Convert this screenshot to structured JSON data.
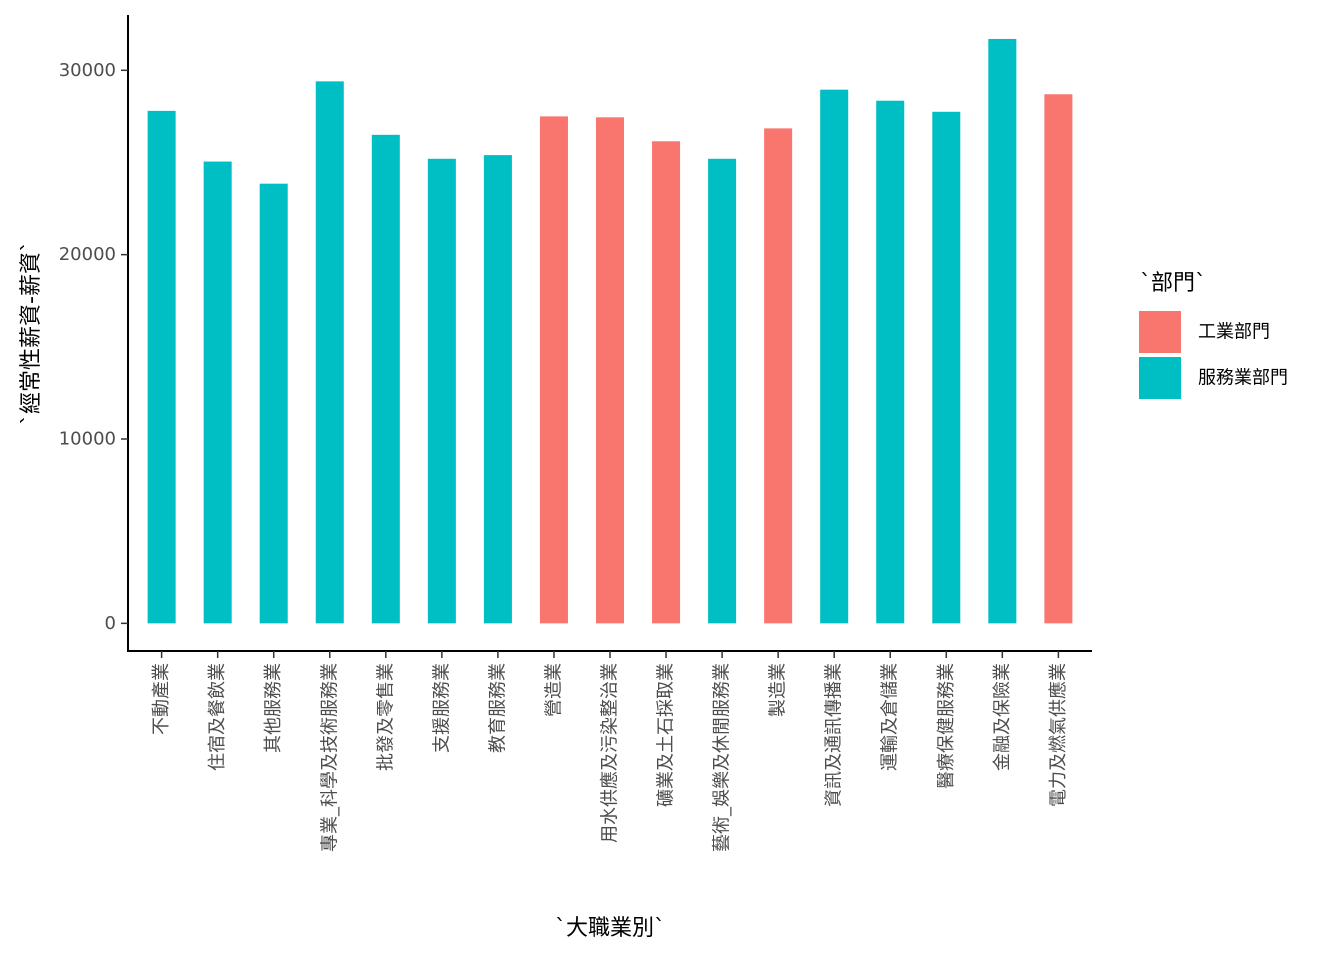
{
  "chart_data": {
    "type": "bar",
    "xlabel": "`大職業別`",
    "ylabel": "`經常性薪資-薪資`",
    "ylim": [
      -1500,
      33000
    ],
    "yticks": [
      0,
      10000,
      20000,
      30000
    ],
    "grid": false,
    "legend_position": "right",
    "legend_title": "`部門`",
    "legend": [
      {
        "name": "工業部門",
        "color": "#F8766D"
      },
      {
        "name": "服務業部門",
        "color": "#00BFC4"
      }
    ],
    "categories": [
      "不動產業",
      "住宿及餐飲業",
      "其他服務業",
      "專業_科學及技術服務業",
      "批發及零售業",
      "支援服務業",
      "教育服務業",
      "營造業",
      "用水供應及污染整治業",
      "礦業及土石採取業",
      "藝術_娛樂及休閒服務業",
      "製造業",
      "資訊及通訊傳播業",
      "運輸及倉儲業",
      "醫療保健服務業",
      "金融及保險業",
      "電力及燃氣供應業"
    ],
    "values": [
      27800,
      25050,
      23850,
      29400,
      26500,
      25200,
      25400,
      27500,
      27450,
      26150,
      25200,
      26850,
      28950,
      28350,
      27750,
      31700,
      28700
    ],
    "sector": [
      "服務業部門",
      "服務業部門",
      "服務業部門",
      "服務業部門",
      "服務業部門",
      "服務業部門",
      "服務業部門",
      "工業部門",
      "工業部門",
      "工業部門",
      "服務業部門",
      "工業部門",
      "服務業部門",
      "服務業部門",
      "服務業部門",
      "服務業部門",
      "工業部門"
    ]
  }
}
